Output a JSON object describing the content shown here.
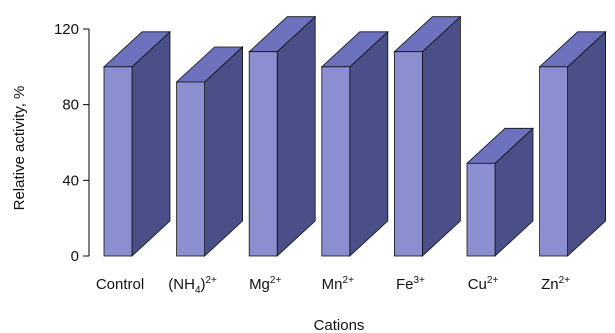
{
  "chart_data": {
    "type": "bar",
    "style": "3d-columns",
    "categories": [
      {
        "label": "Control",
        "sup": "",
        "sub": ""
      },
      {
        "label": "(NH",
        "sub": "4",
        "suffix": ")",
        "sup": "2+"
      },
      {
        "label": "Mg",
        "sup": "2+",
        "sub": ""
      },
      {
        "label": "Mn",
        "sup": "2+",
        "sub": ""
      },
      {
        "label": "Fe",
        "sup": "3+",
        "sub": ""
      },
      {
        "label": "Cu",
        "sup": "2+",
        "sub": ""
      },
      {
        "label": "Zn",
        "sup": "2+",
        "sub": ""
      }
    ],
    "values": [
      100,
      92,
      108,
      100,
      108,
      49,
      100
    ],
    "xlabel": "Cations",
    "ylabel": "Relative activity, %",
    "ylim": [
      0,
      120
    ],
    "yticks": [
      "0",
      "40",
      "80",
      "120"
    ],
    "grid": false,
    "legend": "none",
    "colors": {
      "front": "#8b8fd0",
      "side": "#4a4f88",
      "top": "#6d72bf",
      "edge": "#111111",
      "axis": "#000000"
    }
  }
}
